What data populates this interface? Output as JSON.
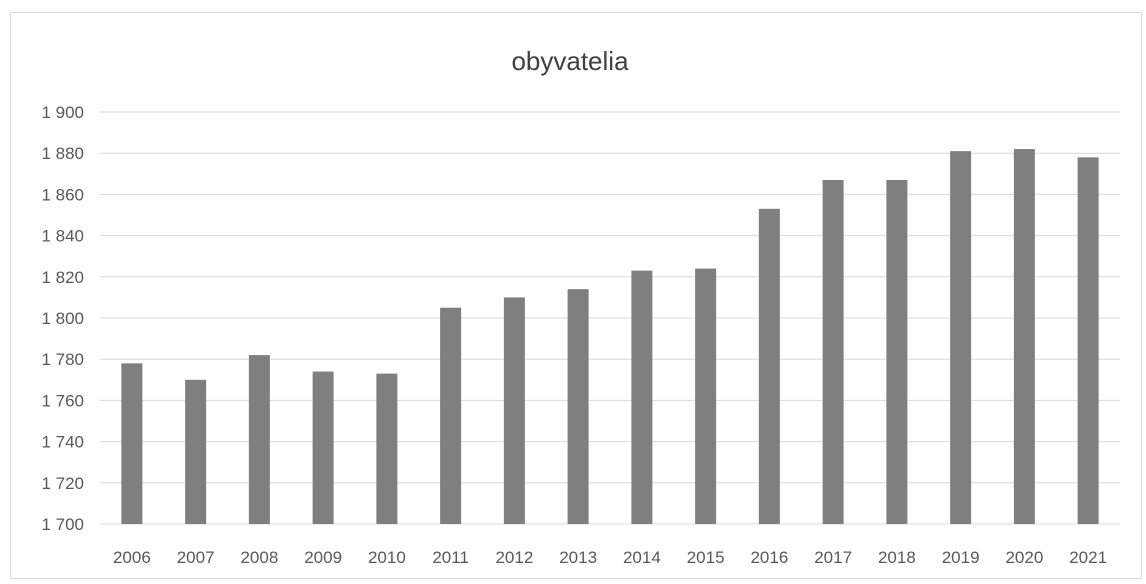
{
  "chart_data": {
    "type": "bar",
    "title": "obyvatelia",
    "categories": [
      "2006",
      "2007",
      "2008",
      "2009",
      "2010",
      "2011",
      "2012",
      "2013",
      "2014",
      "2015",
      "2016",
      "2017",
      "2018",
      "2019",
      "2020",
      "2021"
    ],
    "values": [
      1778,
      1770,
      1782,
      1774,
      1773,
      1805,
      1810,
      1814,
      1823,
      1824,
      1853,
      1867,
      1867,
      1881,
      1882,
      1878
    ],
    "ylim": [
      1700,
      1900
    ],
    "yticks": [
      1700,
      1720,
      1740,
      1760,
      1780,
      1800,
      1820,
      1840,
      1860,
      1880,
      1900
    ],
    "ytick_labels": [
      "1 700",
      "1 720",
      "1 740",
      "1 760",
      "1 780",
      "1 800",
      "1 820",
      "1 840",
      "1 860",
      "1 880",
      "1 900"
    ],
    "grid": true,
    "bar_color": "#7f7f7f",
    "grid_color": "#d9d9d9",
    "legend": "none"
  }
}
